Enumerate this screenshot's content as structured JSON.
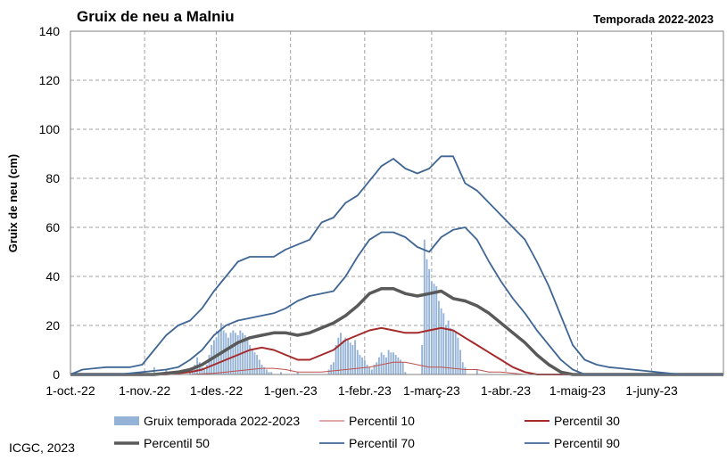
{
  "chart_data": {
    "type": "bar",
    "title": "Gruix de neu a Malniu",
    "subtitle": "Temporada 2022-2023",
    "ylabel": "Gruix de neu (cm)",
    "credit": "ICGC, 2023",
    "ylim": [
      0,
      140
    ],
    "yticks": [
      "0",
      "20",
      "40",
      "60",
      "80",
      "100",
      "120",
      "140"
    ],
    "xlim_days": [
      0,
      273
    ],
    "xticks": [
      {
        "label": "1-oct.-22",
        "day": 0
      },
      {
        "label": "1-nov.-22",
        "day": 31
      },
      {
        "label": "1-des.-22",
        "day": 61
      },
      {
        "label": "1-gen.-23",
        "day": 92
      },
      {
        "label": "1-febr.-23",
        "day": 123
      },
      {
        "label": "1-març-23",
        "day": 151
      },
      {
        "label": "1-abr.-23",
        "day": 182
      },
      {
        "label": "1-maig-23",
        "day": 212
      },
      {
        "label": "1-juny-23",
        "day": 243
      }
    ],
    "grid": true,
    "legend_position": "bottom",
    "colors": {
      "bars": "#95b3d7",
      "p10": "#c0504d",
      "p30": "#a52a2a",
      "p50": "#595959",
      "p70": "#3f6694",
      "p90": "#3f6694"
    },
    "bars": {
      "name": "Gruix temporada 2022-2023",
      "day": [
        35,
        40,
        50,
        51,
        52,
        53,
        54,
        55,
        56,
        57,
        58,
        59,
        60,
        61,
        62,
        63,
        64,
        65,
        66,
        67,
        68,
        69,
        70,
        71,
        72,
        73,
        74,
        75,
        76,
        77,
        78,
        79,
        80,
        81,
        82,
        83,
        84,
        88,
        95,
        108,
        109,
        110,
        111,
        112,
        113,
        114,
        115,
        116,
        117,
        118,
        119,
        120,
        121,
        122,
        123,
        124,
        125,
        126,
        127,
        128,
        129,
        130,
        131,
        132,
        133,
        134,
        135,
        136,
        137,
        138,
        139,
        140,
        147,
        148,
        149,
        150,
        151,
        152,
        153,
        154,
        155,
        156,
        157,
        158,
        159,
        160,
        161,
        162,
        163,
        164,
        165,
        170
      ],
      "values": [
        3,
        2,
        1,
        2,
        4,
        7,
        5,
        3,
        2,
        4,
        8,
        12,
        14,
        15,
        18,
        21,
        18,
        17,
        15,
        17,
        18,
        17,
        16,
        18,
        17,
        16,
        14,
        12,
        10,
        9,
        8,
        6,
        4,
        3,
        2,
        1,
        1,
        1,
        1,
        2,
        4,
        5,
        12,
        15,
        17,
        14,
        15,
        14,
        13,
        12,
        14,
        10,
        8,
        7,
        6,
        4,
        3,
        2,
        4,
        5,
        7,
        9,
        8,
        7,
        10,
        9,
        9,
        8,
        7,
        6,
        5,
        1,
        12,
        55,
        47,
        43,
        38,
        37,
        36,
        30,
        27,
        25,
        20,
        22,
        19,
        18,
        17,
        15,
        10,
        5,
        3,
        2
      ]
    },
    "series": [
      {
        "name": "Percentil 10",
        "key": "p10",
        "x": [
          0,
          40,
          50,
          60,
          65,
          70,
          75,
          80,
          85,
          90,
          95,
          100,
          105,
          110,
          115,
          120,
          125,
          130,
          135,
          140,
          145,
          150,
          155,
          160,
          165,
          170,
          175,
          180,
          185,
          190,
          273
        ],
        "y": [
          0,
          0,
          0,
          0.5,
          1,
          1.5,
          2,
          2.5,
          2.5,
          2,
          1,
          1,
          1,
          1.5,
          2,
          2.5,
          3,
          4,
          5,
          5,
          4,
          3,
          3,
          2.5,
          2,
          2,
          1,
          1,
          0.5,
          0,
          0
        ]
      },
      {
        "name": "Percentil 30",
        "key": "p30",
        "x": [
          0,
          40,
          45,
          50,
          55,
          60,
          65,
          70,
          75,
          80,
          85,
          90,
          95,
          100,
          105,
          110,
          115,
          120,
          125,
          130,
          135,
          140,
          145,
          150,
          155,
          160,
          165,
          170,
          175,
          180,
          185,
          190,
          195,
          273
        ],
        "y": [
          0,
          0,
          0.5,
          1,
          2,
          4,
          6,
          8,
          10,
          11,
          10,
          8,
          6,
          6,
          8,
          10,
          14,
          16,
          18,
          19,
          18,
          17,
          17,
          18,
          19,
          18,
          15,
          12,
          9,
          6,
          3,
          1,
          0,
          0
        ]
      },
      {
        "name": "Percentil 50",
        "key": "p50",
        "x": [
          0,
          35,
          40,
          45,
          50,
          55,
          60,
          65,
          70,
          75,
          80,
          85,
          90,
          95,
          100,
          105,
          110,
          115,
          120,
          125,
          130,
          135,
          140,
          145,
          150,
          155,
          160,
          165,
          170,
          175,
          180,
          185,
          190,
          195,
          200,
          205,
          210,
          273
        ],
        "y": [
          0,
          0,
          0.5,
          1,
          2,
          4,
          7,
          10,
          13,
          15,
          16,
          17,
          17,
          16,
          17,
          19,
          21,
          24,
          28,
          33,
          35,
          35,
          33,
          32,
          33,
          34,
          31,
          30,
          28,
          25,
          21,
          17,
          13,
          8,
          4,
          1,
          0,
          0
        ]
      },
      {
        "name": "Percentil 70",
        "key": "p70",
        "x": [
          0,
          20,
          25,
          30,
          35,
          40,
          45,
          50,
          55,
          60,
          65,
          70,
          75,
          80,
          85,
          90,
          95,
          100,
          105,
          110,
          115,
          120,
          125,
          130,
          135,
          140,
          145,
          150,
          155,
          160,
          165,
          170,
          175,
          180,
          185,
          190,
          195,
          200,
          205,
          210,
          215,
          273
        ],
        "y": [
          0,
          0,
          0.5,
          1,
          1.5,
          2,
          3,
          6,
          10,
          16,
          20,
          22,
          23,
          24,
          25,
          27,
          30,
          32,
          33,
          34,
          40,
          48,
          55,
          58,
          58,
          56,
          52,
          50,
          56,
          59,
          60,
          55,
          46,
          38,
          31,
          25,
          18,
          12,
          6,
          2,
          0,
          0
        ]
      },
      {
        "name": "Percentil 90",
        "key": "p90",
        "x": [
          0,
          5,
          10,
          15,
          20,
          25,
          30,
          35,
          40,
          45,
          50,
          55,
          60,
          65,
          70,
          75,
          80,
          85,
          90,
          95,
          100,
          105,
          110,
          115,
          120,
          125,
          130,
          135,
          140,
          145,
          150,
          155,
          160,
          165,
          170,
          175,
          180,
          185,
          190,
          195,
          200,
          205,
          210,
          215,
          220,
          225,
          230,
          235,
          240,
          245,
          250,
          255,
          273
        ],
        "y": [
          0,
          2,
          2.5,
          3,
          3,
          3,
          4,
          10,
          16,
          20,
          22,
          27,
          34,
          40,
          46,
          48,
          48,
          48,
          51,
          53,
          55,
          62,
          64,
          70,
          73,
          79,
          85,
          88,
          84,
          82,
          84,
          89,
          89,
          78,
          75,
          70,
          65,
          60,
          55,
          46,
          36,
          24,
          12,
          6,
          4,
          3,
          2.5,
          2,
          1.5,
          1,
          0.5,
          0,
          0
        ]
      }
    ],
    "legend": [
      {
        "name": "Gruix temporada 2022-2023",
        "key": "bars"
      },
      {
        "name": "Percentil 10",
        "key": "p10"
      },
      {
        "name": "Percentil 30",
        "key": "p30"
      },
      {
        "name": "Percentil 50",
        "key": "p50"
      },
      {
        "name": "Percentil 70",
        "key": "p70"
      },
      {
        "name": "Percentil 90",
        "key": "p90"
      }
    ]
  }
}
